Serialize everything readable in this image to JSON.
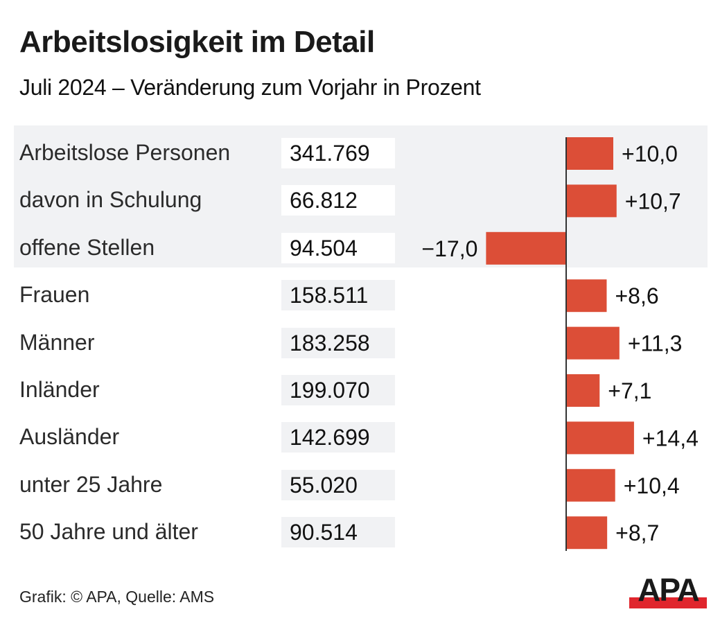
{
  "header": {
    "title": "Arbeitslosigkeit im Detail",
    "subtitle": "Juli 2024 – Veränderung zum Vorjahr in Prozent"
  },
  "footer": {
    "credit": "Grafik: © APA, Quelle: AMS",
    "logo_text": "APA"
  },
  "colors": {
    "bar": "#dc4e37",
    "highlight_background": "#f1f2f4",
    "axis": "#333333",
    "logo_red": "#e0262d",
    "logo_black": "#1a1a1a"
  },
  "chart_data": {
    "type": "bar",
    "orientation": "horizontal",
    "title": "Arbeitslosigkeit im Detail",
    "subtitle": "Juli 2024 – Veränderung zum Vorjahr in Prozent",
    "xlabel": "Veränderung zum Vorjahr in Prozent",
    "ylabel": "",
    "grid": false,
    "legend": "none",
    "xlim": [
      -17,
      14.4
    ],
    "categories": [
      "Arbeitslose Personen",
      "davon in Schulung",
      "offene Stellen",
      "Frauen",
      "Männer",
      "Inländer",
      "Ausländer",
      "unter 25 Jahre",
      "50 Jahre und älter"
    ],
    "absolute_values": [
      341769,
      66812,
      94504,
      158511,
      183258,
      199070,
      142699,
      55020,
      90514
    ],
    "absolute_labels": [
      "341.769",
      "66.812",
      "94.504",
      "158.511",
      "183.258",
      "199.070",
      "142.699",
      "55.020",
      "90.514"
    ],
    "values": [
      10.0,
      10.7,
      -17.0,
      8.6,
      11.3,
      7.1,
      14.4,
      10.4,
      8.7
    ],
    "value_labels": [
      "+10,0",
      "+10,7",
      "−17,0",
      "+8,6",
      "+11,3",
      "+7,1",
      "+14,4",
      "+10,4",
      "+8,7"
    ],
    "highlighted_rows": [
      0,
      1,
      2
    ],
    "source": "Grafik: © APA, Quelle: AMS"
  }
}
